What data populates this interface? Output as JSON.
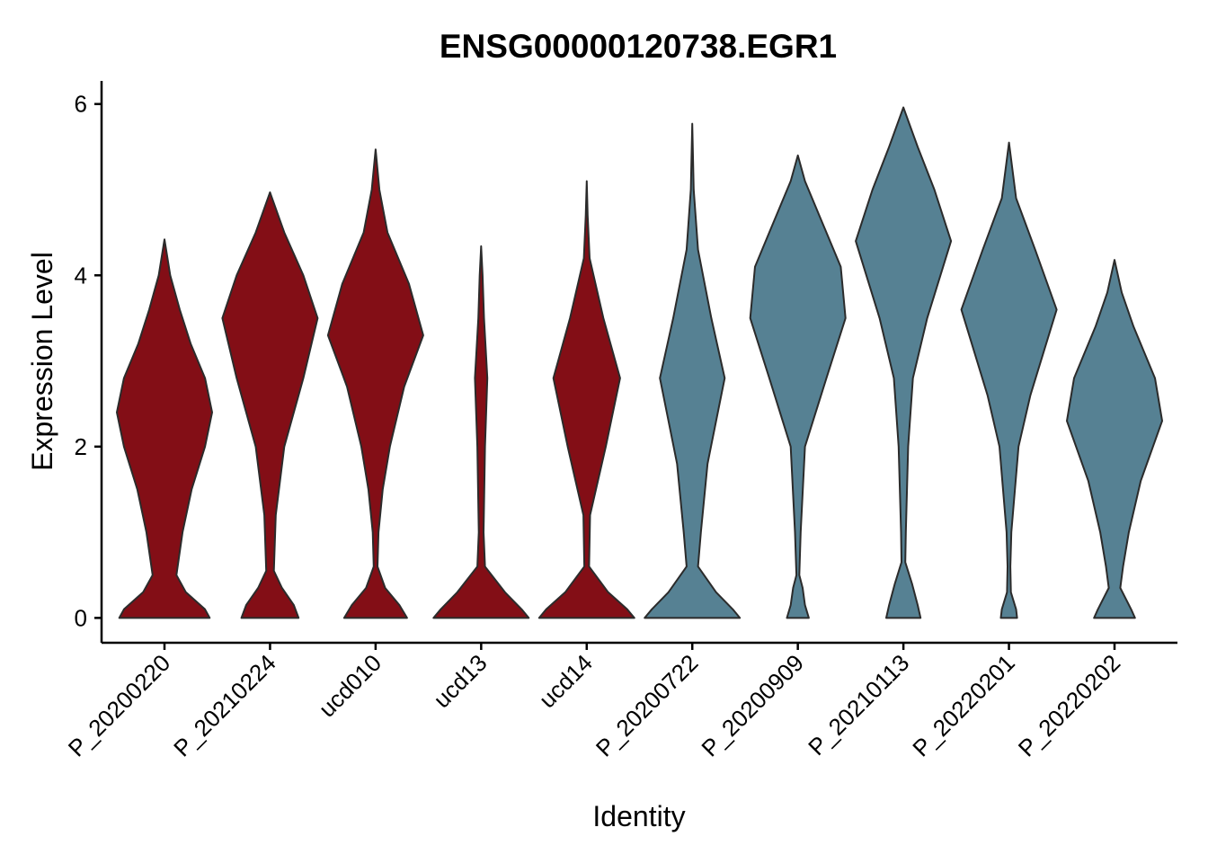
{
  "chart_data": {
    "type": "violin",
    "title": "ENSG00000120738.EGR1",
    "xlabel": "Identity",
    "ylabel": "Expression Level",
    "categories": [
      "P_20200220",
      "P_20210224",
      "ucd010",
      "ucd13",
      "ucd14",
      "P_20200722",
      "P_20200909",
      "P_20210113",
      "P_20220201",
      "P_20220202"
    ],
    "colors": [
      "#830E16",
      "#830E16",
      "#830E16",
      "#830E16",
      "#830E16",
      "#568193",
      "#568193",
      "#568193",
      "#568193",
      "#568193"
    ],
    "violins": [
      {
        "y": [
          0,
          0.1,
          0.3,
          0.5,
          1.0,
          1.5,
          2.0,
          2.4,
          2.8,
          3.2,
          3.6,
          4.0,
          4.42
        ],
        "width": [
          0.95,
          0.85,
          0.45,
          0.25,
          0.38,
          0.57,
          0.85,
          1.0,
          0.85,
          0.55,
          0.32,
          0.12,
          0
        ]
      },
      {
        "y": [
          0,
          0.15,
          0.35,
          0.55,
          1.2,
          2.0,
          2.8,
          3.5,
          4.0,
          4.5,
          4.97
        ],
        "width": [
          0.6,
          0.5,
          0.25,
          0.08,
          0.12,
          0.3,
          0.7,
          1.0,
          0.7,
          0.3,
          0
        ]
      },
      {
        "y": [
          0,
          0.15,
          0.35,
          0.6,
          1.0,
          1.5,
          2.0,
          2.7,
          3.3,
          3.9,
          4.5,
          5.0,
          5.47
        ],
        "width": [
          0.66,
          0.5,
          0.2,
          0.04,
          0.06,
          0.15,
          0.3,
          0.6,
          1.0,
          0.7,
          0.25,
          0.08,
          0
        ]
      },
      {
        "y": [
          0,
          0.1,
          0.3,
          0.6,
          1.0,
          2.0,
          2.8,
          3.5,
          4.0,
          4.34
        ],
        "width": [
          1.0,
          0.85,
          0.5,
          0.08,
          0.05,
          0.08,
          0.13,
          0.06,
          0.03,
          0
        ]
      },
      {
        "y": [
          0,
          0.1,
          0.3,
          0.6,
          1.2,
          2.0,
          2.8,
          3.5,
          4.2,
          4.7,
          5.1
        ],
        "width": [
          1.0,
          0.85,
          0.45,
          0.05,
          0.07,
          0.4,
          0.7,
          0.35,
          0.06,
          0.02,
          0
        ]
      },
      {
        "y": [
          0,
          0.1,
          0.3,
          0.6,
          1.0,
          1.8,
          2.8,
          3.5,
          4.3,
          5.0,
          5.77
        ],
        "width": [
          1.0,
          0.85,
          0.5,
          0.12,
          0.18,
          0.32,
          0.68,
          0.4,
          0.12,
          0.03,
          0
        ]
      },
      {
        "y": [
          0,
          0.15,
          0.35,
          0.5,
          1.0,
          2.0,
          2.8,
          3.5,
          4.1,
          4.7,
          5.1,
          5.4
        ],
        "width": [
          0.23,
          0.15,
          0.1,
          0.03,
          0.06,
          0.15,
          0.6,
          1.0,
          0.9,
          0.45,
          0.15,
          0
        ]
      },
      {
        "y": [
          0,
          0.15,
          0.4,
          0.65,
          1.0,
          2.0,
          2.8,
          3.5,
          4.4,
          5.0,
          5.5,
          5.96
        ],
        "width": [
          0.36,
          0.3,
          0.18,
          0.04,
          0.05,
          0.1,
          0.2,
          0.5,
          1.0,
          0.65,
          0.3,
          0
        ]
      },
      {
        "y": [
          0,
          0.1,
          0.3,
          0.6,
          1.0,
          2.0,
          2.6,
          3.6,
          4.3,
          4.9,
          5.55
        ],
        "width": [
          0.17,
          0.15,
          0.04,
          0.03,
          0.05,
          0.2,
          0.45,
          1.0,
          0.55,
          0.15,
          0
        ]
      },
      {
        "y": [
          0,
          0.1,
          0.35,
          0.6,
          1.0,
          1.6,
          2.3,
          2.8,
          3.4,
          3.8,
          4.18
        ],
        "width": [
          0.43,
          0.35,
          0.12,
          0.18,
          0.3,
          0.55,
          1.0,
          0.85,
          0.4,
          0.15,
          0
        ]
      }
    ],
    "ylim": [
      -0.29,
      6.27
    ],
    "yticks": [
      0,
      2,
      4,
      6
    ],
    "grid": false
  }
}
